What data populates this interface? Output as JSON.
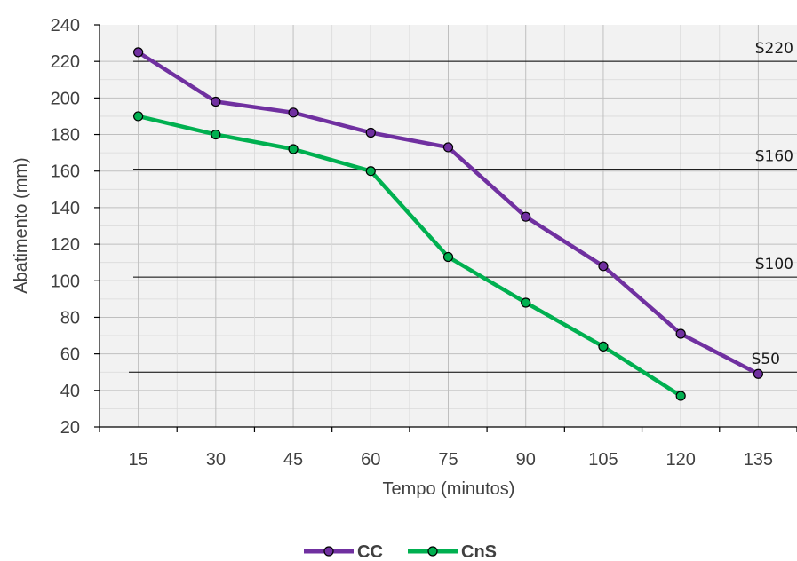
{
  "chart_data": {
    "type": "line",
    "xlabel": "Tempo (minutos)",
    "ylabel": "Abatimento (mm)",
    "x": [
      15,
      30,
      45,
      60,
      75,
      90,
      105,
      120,
      135
    ],
    "x_tick_labels": [
      "15",
      "30",
      "45",
      "60",
      "75",
      "90",
      "105",
      "120",
      "135"
    ],
    "xlim": [
      7.5,
      142.5
    ],
    "ylim": [
      20,
      240
    ],
    "y_ticks": [
      20,
      40,
      60,
      80,
      100,
      120,
      140,
      160,
      180,
      200,
      220,
      240
    ],
    "grid": true,
    "series": [
      {
        "name": "CC",
        "color": "#7030a0",
        "values": [
          225,
          198,
          192,
          181,
          173,
          135,
          108,
          71,
          49
        ]
      },
      {
        "name": "CnS",
        "color": "#00b050",
        "values": [
          190,
          180,
          172,
          160,
          113,
          88,
          64,
          37,
          null
        ]
      }
    ],
    "reference_lines": [
      {
        "label": "S220",
        "value": 220
      },
      {
        "label": "S160",
        "value": 161
      },
      {
        "label": "S100",
        "value": 102
      },
      {
        "label": "S50",
        "value": 50
      }
    ],
    "legend_position": "bottom-center"
  }
}
